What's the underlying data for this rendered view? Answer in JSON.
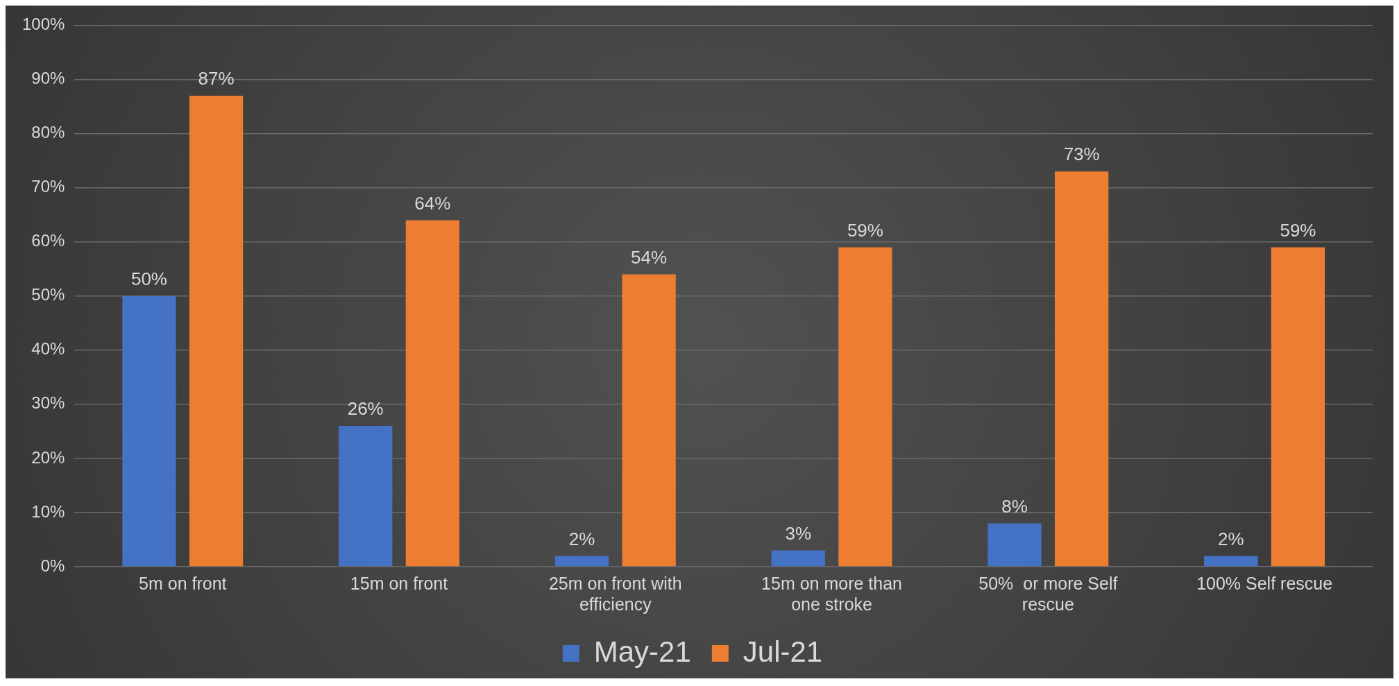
{
  "chart_data": {
    "type": "bar",
    "categories": [
      "5m on front",
      "15m on front",
      "25m on front with efficiency",
      "15m on more than one stroke",
      "50%  or more Self rescue",
      "100% Self rescue"
    ],
    "series": [
      {
        "name": "May-21",
        "color": "#4472c4",
        "values": [
          50,
          26,
          2,
          3,
          8,
          2
        ],
        "value_labels": [
          "50%",
          "26%",
          "2%",
          "3%",
          "8%",
          "2%"
        ]
      },
      {
        "name": "Jul-21",
        "color": "#ed7d31",
        "values": [
          87,
          64,
          54,
          59,
          73,
          59
        ],
        "value_labels": [
          "87%",
          "64%",
          "54%",
          "59%",
          "73%",
          "59%"
        ]
      }
    ],
    "ylim": [
      0,
      100
    ],
    "yticks": [
      {
        "value": 0,
        "label": "0%"
      },
      {
        "value": 10,
        "label": "10%"
      },
      {
        "value": 20,
        "label": "20%"
      },
      {
        "value": 30,
        "label": "30%"
      },
      {
        "value": 40,
        "label": "40%"
      },
      {
        "value": 50,
        "label": "50%"
      },
      {
        "value": 60,
        "label": "60%"
      },
      {
        "value": 70,
        "label": "70%"
      },
      {
        "value": 80,
        "label": "80%"
      },
      {
        "value": 90,
        "label": "90%"
      },
      {
        "value": 100,
        "label": "100%"
      }
    ],
    "grid": "y",
    "legend": "bottom"
  }
}
